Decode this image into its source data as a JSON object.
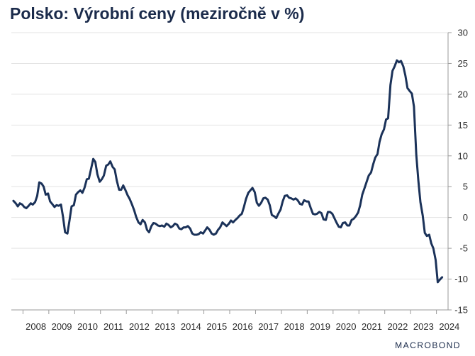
{
  "title": "Polsko: Výrobní ceny (meziročně v %)",
  "brand": "MACROBOND",
  "colors": {
    "line": "#1b3259",
    "grid": "#e3e3e3",
    "axis": "#9a9a9a",
    "title": "#1b2b4b"
  },
  "chart_data": {
    "type": "line",
    "title": "Polsko: Výrobní ceny (meziročně v %)",
    "ylim": [
      -15,
      30
    ],
    "yticks": [
      30,
      25,
      20,
      15,
      10,
      5,
      0,
      -5,
      -10,
      -15
    ],
    "y_axis_side": "right",
    "xlim": [
      2007.55,
      2024.45
    ],
    "xticks": [
      "2008",
      "2009",
      "2010",
      "2011",
      "2012",
      "2013",
      "2014",
      "2015",
      "2016",
      "2017",
      "2018",
      "2019",
      "2020",
      "2021",
      "2022",
      "2023",
      "2024"
    ],
    "grid": "horizontal",
    "series": [
      {
        "values": [
          [
            2007.63,
            2.7
          ],
          [
            2007.72,
            2.3
          ],
          [
            2007.8,
            1.8
          ],
          [
            2007.88,
            2.3
          ],
          [
            2007.97,
            2.1
          ],
          [
            2008.05,
            1.7
          ],
          [
            2008.13,
            1.5
          ],
          [
            2008.22,
            1.9
          ],
          [
            2008.3,
            2.3
          ],
          [
            2008.38,
            2.1
          ],
          [
            2008.47,
            2.5
          ],
          [
            2008.55,
            3.5
          ],
          [
            2008.63,
            5.7
          ],
          [
            2008.72,
            5.5
          ],
          [
            2008.8,
            5.0
          ],
          [
            2008.88,
            3.7
          ],
          [
            2008.97,
            3.9
          ],
          [
            2009.05,
            2.6
          ],
          [
            2009.13,
            2.2
          ],
          [
            2009.22,
            1.7
          ],
          [
            2009.3,
            2.0
          ],
          [
            2009.38,
            1.9
          ],
          [
            2009.47,
            2.1
          ],
          [
            2009.55,
            0.1
          ],
          [
            2009.63,
            -2.4
          ],
          [
            2009.72,
            -2.6
          ],
          [
            2009.8,
            -0.5
          ],
          [
            2009.88,
            1.8
          ],
          [
            2009.97,
            2.0
          ],
          [
            2010.05,
            3.7
          ],
          [
            2010.13,
            4.1
          ],
          [
            2010.22,
            4.4
          ],
          [
            2010.3,
            4.0
          ],
          [
            2010.38,
            4.8
          ],
          [
            2010.47,
            6.2
          ],
          [
            2010.55,
            6.3
          ],
          [
            2010.63,
            7.8
          ],
          [
            2010.72,
            9.5
          ],
          [
            2010.8,
            9.0
          ],
          [
            2010.88,
            7.0
          ],
          [
            2010.97,
            5.8
          ],
          [
            2011.05,
            6.2
          ],
          [
            2011.13,
            6.8
          ],
          [
            2011.22,
            8.4
          ],
          [
            2011.3,
            8.6
          ],
          [
            2011.38,
            9.1
          ],
          [
            2011.47,
            8.2
          ],
          [
            2011.55,
            7.8
          ],
          [
            2011.63,
            6.0
          ],
          [
            2011.72,
            4.5
          ],
          [
            2011.8,
            4.5
          ],
          [
            2011.88,
            5.2
          ],
          [
            2011.97,
            4.4
          ],
          [
            2012.05,
            3.6
          ],
          [
            2012.13,
            3.0
          ],
          [
            2012.22,
            2.1
          ],
          [
            2012.3,
            1.2
          ],
          [
            2012.38,
            0.1
          ],
          [
            2012.47,
            -0.8
          ],
          [
            2012.55,
            -1.1
          ],
          [
            2012.63,
            -0.4
          ],
          [
            2012.72,
            -0.8
          ],
          [
            2012.8,
            -2.0
          ],
          [
            2012.88,
            -2.4
          ],
          [
            2012.97,
            -1.4
          ],
          [
            2013.05,
            -0.9
          ],
          [
            2013.13,
            -1.0
          ],
          [
            2013.22,
            -1.3
          ],
          [
            2013.3,
            -1.4
          ],
          [
            2013.38,
            -1.3
          ],
          [
            2013.47,
            -1.5
          ],
          [
            2013.55,
            -1.0
          ],
          [
            2013.63,
            -1.2
          ],
          [
            2013.72,
            -1.6
          ],
          [
            2013.8,
            -1.4
          ],
          [
            2013.88,
            -1.0
          ],
          [
            2013.97,
            -1.2
          ],
          [
            2014.05,
            -1.8
          ],
          [
            2014.13,
            -1.9
          ],
          [
            2014.22,
            -1.6
          ],
          [
            2014.3,
            -1.6
          ],
          [
            2014.38,
            -1.4
          ],
          [
            2014.47,
            -1.8
          ],
          [
            2014.55,
            -2.6
          ],
          [
            2014.63,
            -2.8
          ],
          [
            2014.72,
            -2.8
          ],
          [
            2014.8,
            -2.7
          ],
          [
            2014.88,
            -2.4
          ],
          [
            2014.97,
            -2.6
          ],
          [
            2015.05,
            -2.1
          ],
          [
            2015.13,
            -1.6
          ],
          [
            2015.22,
            -2.0
          ],
          [
            2015.3,
            -2.6
          ],
          [
            2015.38,
            -2.8
          ],
          [
            2015.47,
            -2.6
          ],
          [
            2015.55,
            -2.0
          ],
          [
            2015.63,
            -1.6
          ],
          [
            2015.72,
            -0.8
          ],
          [
            2015.8,
            -1.1
          ],
          [
            2015.88,
            -1.4
          ],
          [
            2015.97,
            -1.0
          ],
          [
            2016.05,
            -0.5
          ],
          [
            2016.13,
            -0.8
          ],
          [
            2016.22,
            -0.4
          ],
          [
            2016.3,
            -0.1
          ],
          [
            2016.38,
            0.3
          ],
          [
            2016.47,
            0.6
          ],
          [
            2016.55,
            1.7
          ],
          [
            2016.63,
            3.0
          ],
          [
            2016.72,
            4.0
          ],
          [
            2016.8,
            4.4
          ],
          [
            2016.88,
            4.8
          ],
          [
            2016.97,
            4.1
          ],
          [
            2017.05,
            2.4
          ],
          [
            2017.13,
            1.9
          ],
          [
            2017.22,
            2.4
          ],
          [
            2017.3,
            3.1
          ],
          [
            2017.38,
            3.2
          ],
          [
            2017.47,
            2.9
          ],
          [
            2017.55,
            2.0
          ],
          [
            2017.63,
            0.4
          ],
          [
            2017.72,
            0.2
          ],
          [
            2017.8,
            -0.1
          ],
          [
            2017.88,
            0.6
          ],
          [
            2017.97,
            1.3
          ],
          [
            2018.05,
            2.6
          ],
          [
            2018.13,
            3.5
          ],
          [
            2018.22,
            3.6
          ],
          [
            2018.3,
            3.2
          ],
          [
            2018.38,
            3.1
          ],
          [
            2018.47,
            2.9
          ],
          [
            2018.55,
            3.1
          ],
          [
            2018.63,
            2.8
          ],
          [
            2018.72,
            2.2
          ],
          [
            2018.8,
            2.1
          ],
          [
            2018.88,
            2.8
          ],
          [
            2018.97,
            2.6
          ],
          [
            2019.05,
            2.6
          ],
          [
            2019.13,
            1.6
          ],
          [
            2019.22,
            0.6
          ],
          [
            2019.3,
            0.5
          ],
          [
            2019.38,
            0.6
          ],
          [
            2019.47,
            0.9
          ],
          [
            2019.55,
            0.7
          ],
          [
            2019.63,
            -0.3
          ],
          [
            2019.72,
            -0.4
          ],
          [
            2019.8,
            0.9
          ],
          [
            2019.88,
            0.9
          ],
          [
            2019.97,
            0.6
          ],
          [
            2020.05,
            -0.1
          ],
          [
            2020.13,
            -0.8
          ],
          [
            2020.22,
            -1.5
          ],
          [
            2020.3,
            -1.6
          ],
          [
            2020.38,
            -0.9
          ],
          [
            2020.47,
            -0.8
          ],
          [
            2020.55,
            -1.3
          ],
          [
            2020.63,
            -1.3
          ],
          [
            2020.72,
            -0.4
          ],
          [
            2020.8,
            -0.2
          ],
          [
            2020.88,
            0.2
          ],
          [
            2020.97,
            0.8
          ],
          [
            2021.05,
            2.0
          ],
          [
            2021.13,
            3.7
          ],
          [
            2021.22,
            4.8
          ],
          [
            2021.3,
            5.8
          ],
          [
            2021.38,
            6.8
          ],
          [
            2021.47,
            7.3
          ],
          [
            2021.55,
            8.6
          ],
          [
            2021.63,
            9.7
          ],
          [
            2021.72,
            10.3
          ],
          [
            2021.8,
            12.3
          ],
          [
            2021.88,
            13.5
          ],
          [
            2021.97,
            14.3
          ],
          [
            2022.05,
            15.9
          ],
          [
            2022.13,
            16.1
          ],
          [
            2022.22,
            21.5
          ],
          [
            2022.3,
            23.8
          ],
          [
            2022.38,
            24.5
          ],
          [
            2022.47,
            25.5
          ],
          [
            2022.55,
            25.2
          ],
          [
            2022.63,
            25.4
          ],
          [
            2022.72,
            24.5
          ],
          [
            2022.8,
            23.0
          ],
          [
            2022.88,
            21.0
          ],
          [
            2022.97,
            20.5
          ],
          [
            2023.05,
            20.1
          ],
          [
            2023.13,
            18.0
          ],
          [
            2023.22,
            10.2
          ],
          [
            2023.3,
            6.0
          ],
          [
            2023.38,
            2.5
          ],
          [
            2023.47,
            0.3
          ],
          [
            2023.55,
            -2.5
          ],
          [
            2023.63,
            -3.0
          ],
          [
            2023.72,
            -2.8
          ],
          [
            2023.8,
            -4.2
          ],
          [
            2023.88,
            -5.0
          ],
          [
            2023.97,
            -6.9
          ],
          [
            2024.05,
            -10.5
          ],
          [
            2024.13,
            -10.1
          ],
          [
            2024.22,
            -9.7
          ]
        ]
      }
    ]
  }
}
